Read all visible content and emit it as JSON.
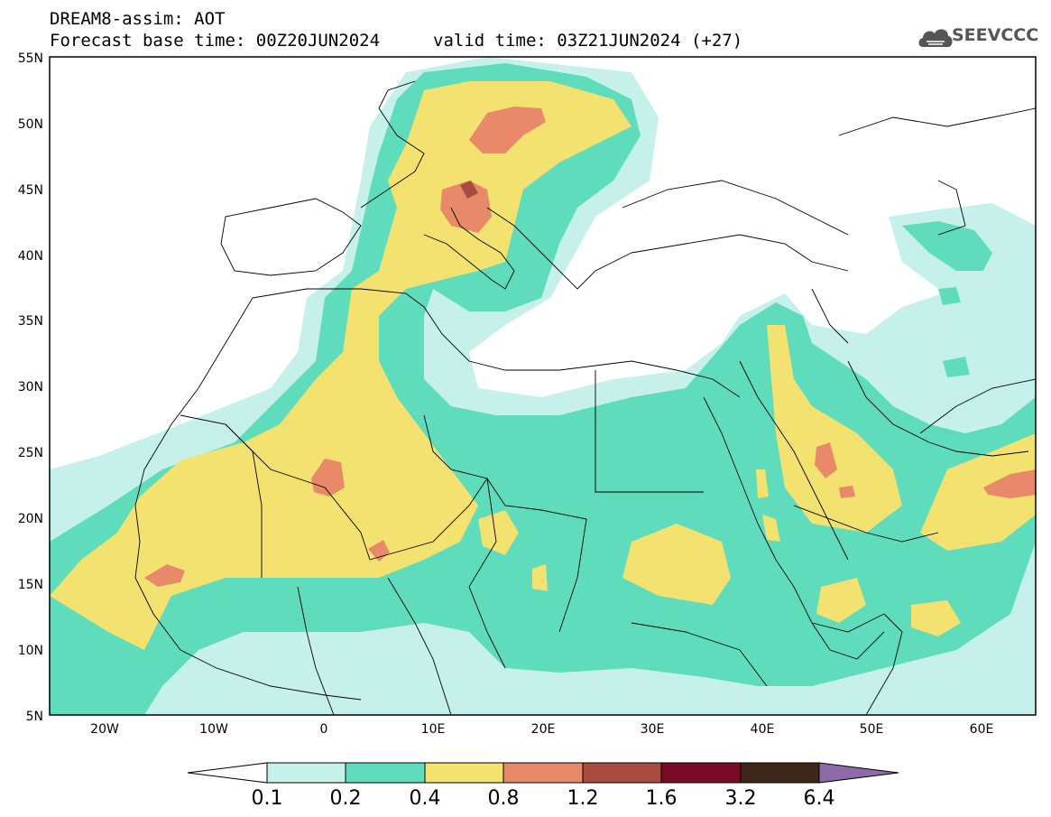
{
  "header": {
    "title": "DREAM8-assim: AOT",
    "forecast_base": "Forecast base time: 00Z20JUN2024",
    "valid_time": "valid time: 03Z21JUN2024 (+27)"
  },
  "logo": {
    "text": "SEEVCCC",
    "icon": "cloud-icon"
  },
  "map": {
    "lon_range": [
      -25,
      65
    ],
    "lat_range": [
      5,
      55
    ],
    "lat_ticks": [
      "55N",
      "50N",
      "45N",
      "40N",
      "35N",
      "30N",
      "25N",
      "20N",
      "15N",
      "10N",
      "5N"
    ],
    "lon_ticks": [
      "20W",
      "10W",
      "0",
      "10E",
      "20E",
      "30E",
      "40E",
      "50E",
      "60E"
    ]
  },
  "colorbar": {
    "labels": [
      "0.1",
      "0.2",
      "0.4",
      "0.8",
      "1.2",
      "1.6",
      "3.2",
      "6.4"
    ],
    "colors": [
      "#c6f0ea",
      "#5fdcbb",
      "#f3e170",
      "#e8896a",
      "#a94b3f",
      "#7a0a26",
      "#3b2818",
      "#8e6aa8"
    ]
  }
}
